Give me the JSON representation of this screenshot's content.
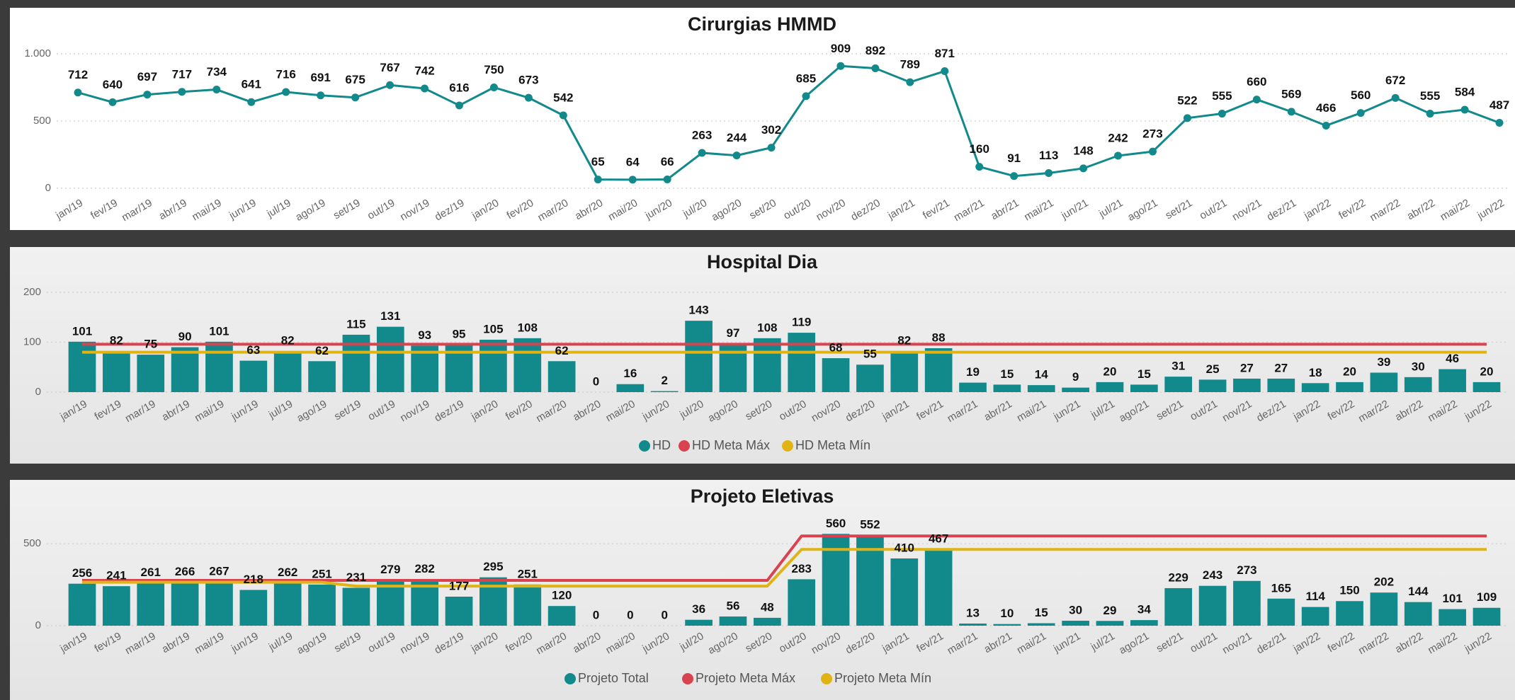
{
  "chart_data": [
    {
      "type": "line",
      "title": "Cirurgias HMMD",
      "categories": [
        "jan/19",
        "fev/19",
        "mar/19",
        "abr/19",
        "mai/19",
        "jun/19",
        "jul/19",
        "ago/19",
        "set/19",
        "out/19",
        "nov/19",
        "dez/19",
        "jan/20",
        "fev/20",
        "mar/20",
        "abr/20",
        "mai/20",
        "jun/20",
        "jul/20",
        "ago/20",
        "set/20",
        "out/20",
        "nov/20",
        "dez/20",
        "jan/21",
        "fev/21",
        "mar/21",
        "abr/21",
        "mai/21",
        "jun/21",
        "jul/21",
        "ago/21",
        "set/21",
        "out/21",
        "nov/21",
        "dez/21",
        "jan/22",
        "fev/22",
        "mar/22",
        "abr/22",
        "mai/22",
        "jun/22"
      ],
      "values": [
        712,
        640,
        697,
        717,
        734,
        641,
        716,
        691,
        675,
        767,
        742,
        616,
        750,
        673,
        542,
        65,
        64,
        66,
        263,
        244,
        302,
        685,
        909,
        892,
        789,
        871,
        160,
        91,
        113,
        148,
        242,
        273,
        522,
        555,
        660,
        569,
        466,
        560,
        672,
        555,
        584,
        487
      ],
      "color": "#12898a",
      "ylim": [
        0,
        1000
      ],
      "yticks": [
        0,
        500,
        {
          "value": 1000,
          "label": "1.000"
        }
      ],
      "grid": true
    },
    {
      "type": "bar",
      "title": "Hospital Dia",
      "categories": [
        "jan/19",
        "fev/19",
        "mar/19",
        "abr/19",
        "mai/19",
        "jun/19",
        "jul/19",
        "ago/19",
        "set/19",
        "out/19",
        "nov/19",
        "dez/19",
        "jan/20",
        "fev/20",
        "mar/20",
        "abr/20",
        "mai/20",
        "jun/20",
        "jul/20",
        "ago/20",
        "set/20",
        "out/20",
        "nov/20",
        "dez/20",
        "jan/21",
        "fev/21",
        "mar/21",
        "abr/21",
        "mai/21",
        "jun/21",
        "jul/21",
        "ago/21",
        "set/21",
        "out/21",
        "nov/21",
        "dez/21",
        "jan/22",
        "fev/22",
        "mar/22",
        "abr/22",
        "mai/22",
        "jun/22"
      ],
      "series": [
        {
          "name": "HD",
          "type": "bar",
          "color": "#12898a",
          "values": [
            101,
            82,
            75,
            90,
            101,
            63,
            82,
            62,
            115,
            131,
            93,
            95,
            105,
            108,
            62,
            0,
            16,
            2,
            143,
            97,
            108,
            119,
            68,
            55,
            82,
            88,
            19,
            15,
            14,
            9,
            20,
            15,
            31,
            25,
            27,
            27,
            18,
            20,
            39,
            30,
            46,
            20
          ]
        },
        {
          "name": "HD Meta Máx",
          "type": "line",
          "color": "#d9434f",
          "values": [
            96,
            96,
            96,
            96,
            96,
            96,
            96,
            96,
            96,
            96,
            96,
            96,
            96,
            96,
            96,
            96,
            96,
            96,
            96,
            96,
            96,
            96,
            96,
            96,
            96,
            96,
            96,
            96,
            96,
            96,
            96,
            96,
            96,
            96,
            96,
            96,
            96,
            96,
            96,
            96,
            96,
            96
          ]
        },
        {
          "name": "HD Meta Mín",
          "type": "line",
          "color": "#e0b414",
          "values": [
            80,
            80,
            80,
            80,
            80,
            80,
            80,
            80,
            80,
            80,
            80,
            80,
            80,
            80,
            80,
            80,
            80,
            80,
            80,
            80,
            80,
            80,
            80,
            80,
            80,
            80,
            80,
            80,
            80,
            80,
            80,
            80,
            80,
            80,
            80,
            80,
            80,
            80,
            80,
            80,
            80,
            80
          ]
        }
      ],
      "ylim": [
        0,
        200
      ],
      "yticks": [
        0,
        100,
        200
      ],
      "grid": true,
      "legend": "bottom"
    },
    {
      "type": "bar",
      "title": "Projeto Eletivas",
      "categories": [
        "jan/19",
        "fev/19",
        "mar/19",
        "abr/19",
        "mai/19",
        "jun/19",
        "jul/19",
        "ago/19",
        "set/19",
        "out/19",
        "nov/19",
        "dez/19",
        "jan/20",
        "fev/20",
        "mar/20",
        "abr/20",
        "mai/20",
        "jun/20",
        "jul/20",
        "ago/20",
        "set/20",
        "out/20",
        "nov/20",
        "dez/20",
        "jan/21",
        "fev/21",
        "mar/21",
        "abr/21",
        "mai/21",
        "jun/21",
        "jul/21",
        "ago/21",
        "set/21",
        "out/21",
        "nov/21",
        "dez/21",
        "jan/22",
        "fev/22",
        "mar/22",
        "abr/22",
        "mai/22",
        "jun/22"
      ],
      "series": [
        {
          "name": "Projeto Total",
          "type": "bar",
          "color": "#12898a",
          "values": [
            256,
            241,
            261,
            266,
            267,
            218,
            262,
            251,
            231,
            279,
            282,
            177,
            295,
            251,
            120,
            0,
            0,
            0,
            36,
            56,
            48,
            283,
            560,
            552,
            410,
            467,
            13,
            10,
            15,
            30,
            29,
            34,
            229,
            243,
            273,
            165,
            114,
            150,
            202,
            144,
            101,
            109
          ]
        },
        {
          "name": "Projeto Meta Máx",
          "type": "line",
          "color": "#d9434f",
          "values": [
            276,
            276,
            276,
            276,
            276,
            276,
            276,
            276,
            276,
            276,
            276,
            276,
            276,
            276,
            276,
            276,
            276,
            276,
            276,
            276,
            276,
            547,
            547,
            547,
            547,
            547,
            547,
            547,
            547,
            547,
            547,
            547,
            547,
            547,
            547,
            547,
            547,
            547,
            547,
            547,
            547,
            547
          ]
        },
        {
          "name": "Projeto Meta Mín",
          "type": "line",
          "color": "#e0b414",
          "values": [
            265,
            265,
            265,
            265,
            265,
            265,
            265,
            265,
            241,
            241,
            241,
            241,
            241,
            241,
            241,
            241,
            241,
            241,
            241,
            241,
            241,
            465,
            465,
            465,
            465,
            465,
            465,
            465,
            465,
            465,
            465,
            465,
            465,
            465,
            465,
            465,
            465,
            465,
            465,
            465,
            465,
            465
          ]
        }
      ],
      "ylim": [
        0,
        600
      ],
      "yticks": [
        0,
        500
      ],
      "grid": true,
      "legend": "bottom"
    }
  ]
}
